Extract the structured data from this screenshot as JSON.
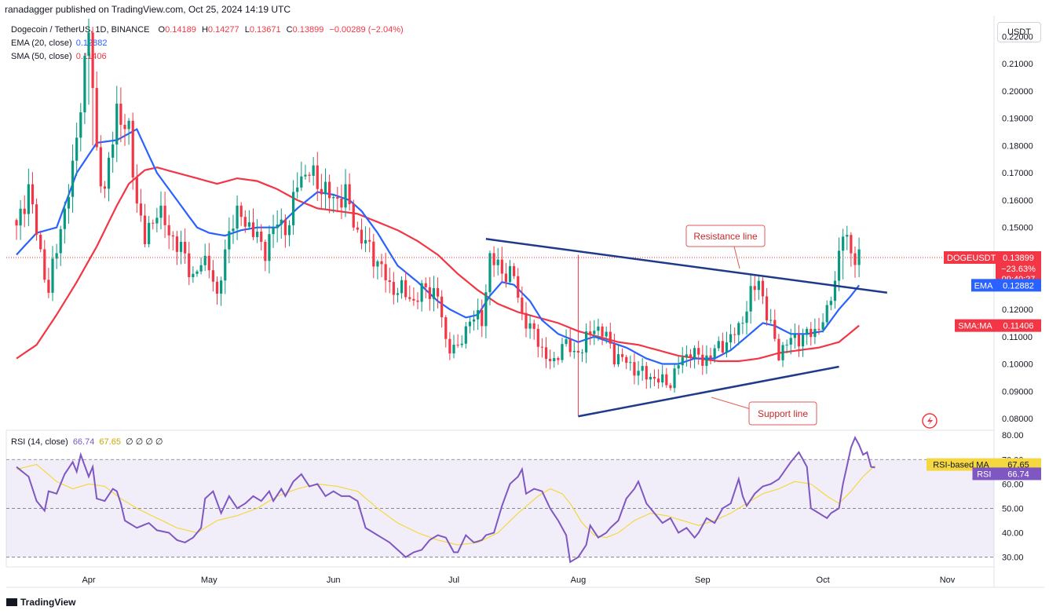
{
  "header": {
    "publisher": "ranadagger published on TradingView.com, Oct 25, 2024 14:19 UTC"
  },
  "legend": {
    "symbol": "Dogecoin / TetherUS, 1D, BINANCE",
    "open_label": "O",
    "open": "0.14189",
    "high_label": "H",
    "high": "0.14277",
    "low_label": "L",
    "low": "0.13671",
    "close_label": "C",
    "close": "0.13899",
    "change": "−0.00289 (−2.04%)",
    "ema_label": "EMA (20, close)",
    "ema_value": "0.12882",
    "sma_label": "SMA (50, close)",
    "sma_value": "0.11406"
  },
  "rsi_legend": {
    "label": "RSI (14, close)",
    "rsi": "66.74",
    "ma": "67.65",
    "extras": "∅ ∅ ∅ ∅"
  },
  "currency": "USDT",
  "footer": {
    "logo_text": "TradingView"
  },
  "annotations": {
    "resistance": "Resistance line",
    "support": "Support line"
  },
  "colors": {
    "up": "#089981",
    "down": "#f23645",
    "ema": "#2962ff",
    "sma": "#f23645",
    "trend": "#1e3a8a",
    "rsi": "#7e57c2",
    "rsi_ma": "#f5d742"
  },
  "chart_data": {
    "type": "candlestick",
    "price_axis": {
      "ticks": [
        "0.22000",
        "0.21000",
        "0.20000",
        "0.19000",
        "0.18000",
        "0.17000",
        "0.16000",
        "0.15000",
        "0.14000",
        "0.13000",
        "0.12000",
        "0.11000",
        "0.10000",
        "0.09000",
        "0.08000"
      ],
      "range": [
        0.0757,
        0.227
      ]
    },
    "rsi_axis": {
      "ticks": [
        "80.00",
        "70.00",
        "60.00",
        "50.00",
        "40.00",
        "30.00"
      ],
      "range": [
        26,
        82
      ],
      "levels": [
        70,
        50,
        30
      ]
    },
    "time_axis": {
      "labels": [
        "Apr",
        "May",
        "Jun",
        "Jul",
        "Aug",
        "Sep",
        "Oct",
        "Nov"
      ],
      "label_days": [
        18,
        48,
        79,
        109,
        140,
        171,
        201,
        232
      ]
    },
    "price_labels": [
      {
        "text": "DOGEUSDT",
        "value": "0.13899",
        "sub1": "−23.63%",
        "sub2": "09:40:27",
        "price": 0.13899,
        "color": "#f23645"
      },
      {
        "text": "EMA",
        "value": "0.12882",
        "price": 0.12882,
        "color": "#2962ff"
      },
      {
        "text": "SMA:MA",
        "value": "0.11406",
        "price": 0.11406,
        "color": "#f23645"
      }
    ],
    "rsi_labels": [
      {
        "text": "RSI-based MA",
        "value": "67.65",
        "level": 67.65,
        "bg": "#f5d742",
        "fg": "#131722"
      },
      {
        "text": "RSI",
        "value": "66.74",
        "level": 66.74,
        "bg": "#7e57c2",
        "fg": "#ffffff"
      }
    ],
    "close_anchors": [
      [
        0,
        0.149
      ],
      [
        3,
        0.165
      ],
      [
        6,
        0.14
      ],
      [
        8,
        0.127
      ],
      [
        11,
        0.15
      ],
      [
        14,
        0.17
      ],
      [
        16,
        0.197
      ],
      [
        18,
        0.222
      ],
      [
        20,
        0.178
      ],
      [
        22,
        0.162
      ],
      [
        25,
        0.194
      ],
      [
        27,
        0.186
      ],
      [
        28,
        0.184
      ],
      [
        30,
        0.16
      ],
      [
        32,
        0.145
      ],
      [
        35,
        0.157
      ],
      [
        38,
        0.148
      ],
      [
        41,
        0.142
      ],
      [
        44,
        0.132
      ],
      [
        46,
        0.136
      ],
      [
        48,
        0.138
      ],
      [
        50,
        0.123
      ],
      [
        53,
        0.15
      ],
      [
        56,
        0.155
      ],
      [
        59,
        0.148
      ],
      [
        62,
        0.142
      ],
      [
        65,
        0.152
      ],
      [
        68,
        0.15
      ],
      [
        70,
        0.168
      ],
      [
        73,
        0.17
      ],
      [
        76,
        0.165
      ],
      [
        79,
        0.16
      ],
      [
        82,
        0.162
      ],
      [
        85,
        0.148
      ],
      [
        88,
        0.142
      ],
      [
        91,
        0.135
      ],
      [
        93,
        0.128
      ],
      [
        96,
        0.127
      ],
      [
        99,
        0.123
      ],
      [
        102,
        0.128
      ],
      [
        105,
        0.125
      ],
      [
        107,
        0.108
      ],
      [
        110,
        0.105
      ],
      [
        113,
        0.117
      ],
      [
        116,
        0.116
      ],
      [
        118,
        0.139
      ],
      [
        121,
        0.134
      ],
      [
        124,
        0.132
      ],
      [
        126,
        0.118
      ],
      [
        128,
        0.113
      ],
      [
        130,
        0.109
      ],
      [
        132,
        0.102
      ],
      [
        134,
        0.1
      ],
      [
        136,
        0.108
      ],
      [
        139,
        0.104
      ],
      [
        141,
        0.106
      ],
      [
        144,
        0.114
      ],
      [
        147,
        0.11
      ],
      [
        149,
        0.103
      ],
      [
        152,
        0.101
      ],
      [
        154,
        0.098
      ],
      [
        157,
        0.096
      ],
      [
        160,
        0.094
      ],
      [
        163,
        0.093
      ],
      [
        165,
        0.1
      ],
      [
        168,
        0.105
      ],
      [
        171,
        0.101
      ],
      [
        174,
        0.105
      ],
      [
        177,
        0.108
      ],
      [
        180,
        0.113
      ],
      [
        183,
        0.125
      ],
      [
        185,
        0.131
      ],
      [
        187,
        0.118
      ],
      [
        190,
        0.104
      ],
      [
        193,
        0.109
      ],
      [
        196,
        0.11
      ],
      [
        199,
        0.112
      ],
      [
        202,
        0.118
      ],
      [
        204,
        0.132
      ],
      [
        206,
        0.148
      ],
      [
        208,
        0.141
      ],
      [
        210,
        0.139
      ]
    ],
    "wick_overrides": [
      [
        18,
        0.2265,
        0.195
      ],
      [
        19,
        0.2235,
        0.18
      ],
      [
        140,
        0.14,
        0.081
      ],
      [
        190,
        0.111,
        0.101
      ],
      [
        206,
        0.1495,
        0.131
      ]
    ],
    "ema_anchors": [
      [
        0,
        0.14
      ],
      [
        5,
        0.148
      ],
      [
        10,
        0.15
      ],
      [
        15,
        0.17
      ],
      [
        20,
        0.181
      ],
      [
        25,
        0.182
      ],
      [
        30,
        0.186
      ],
      [
        35,
        0.17
      ],
      [
        40,
        0.16
      ],
      [
        45,
        0.15
      ],
      [
        48,
        0.148
      ],
      [
        52,
        0.147
      ],
      [
        56,
        0.149
      ],
      [
        60,
        0.15
      ],
      [
        65,
        0.15
      ],
      [
        70,
        0.157
      ],
      [
        75,
        0.163
      ],
      [
        79,
        0.162
      ],
      [
        83,
        0.16
      ],
      [
        86,
        0.156
      ],
      [
        90,
        0.148
      ],
      [
        95,
        0.136
      ],
      [
        100,
        0.13
      ],
      [
        105,
        0.123
      ],
      [
        108,
        0.12
      ],
      [
        112,
        0.117
      ],
      [
        115,
        0.118
      ],
      [
        118,
        0.125
      ],
      [
        121,
        0.13
      ],
      [
        124,
        0.129
      ],
      [
        128,
        0.123
      ],
      [
        131,
        0.116
      ],
      [
        135,
        0.111
      ],
      [
        140,
        0.108
      ],
      [
        144,
        0.11
      ],
      [
        148,
        0.108
      ],
      [
        152,
        0.106
      ],
      [
        157,
        0.102
      ],
      [
        161,
        0.1
      ],
      [
        165,
        0.1
      ],
      [
        169,
        0.102
      ],
      [
        174,
        0.102
      ],
      [
        178,
        0.105
      ],
      [
        182,
        0.11
      ],
      [
        186,
        0.115
      ],
      [
        189,
        0.114
      ],
      [
        193,
        0.111
      ],
      [
        197,
        0.111
      ],
      [
        201,
        0.112
      ],
      [
        205,
        0.12
      ],
      [
        208,
        0.125
      ],
      [
        210,
        0.12882
      ]
    ],
    "sma_anchors": [
      [
        0,
        0.102
      ],
      [
        5,
        0.107
      ],
      [
        10,
        0.118
      ],
      [
        15,
        0.13
      ],
      [
        20,
        0.143
      ],
      [
        25,
        0.158
      ],
      [
        28,
        0.166
      ],
      [
        32,
        0.171
      ],
      [
        35,
        0.172
      ],
      [
        40,
        0.17
      ],
      [
        45,
        0.168
      ],
      [
        50,
        0.166
      ],
      [
        55,
        0.168
      ],
      [
        60,
        0.167
      ],
      [
        65,
        0.164
      ],
      [
        70,
        0.16
      ],
      [
        75,
        0.157
      ],
      [
        80,
        0.156
      ],
      [
        85,
        0.155
      ],
      [
        90,
        0.152
      ],
      [
        95,
        0.149
      ],
      [
        100,
        0.145
      ],
      [
        105,
        0.14
      ],
      [
        110,
        0.133
      ],
      [
        115,
        0.127
      ],
      [
        120,
        0.122
      ],
      [
        125,
        0.119
      ],
      [
        130,
        0.117
      ],
      [
        135,
        0.115
      ],
      [
        140,
        0.112
      ],
      [
        145,
        0.11
      ],
      [
        150,
        0.108
      ],
      [
        155,
        0.107
      ],
      [
        160,
        0.105
      ],
      [
        165,
        0.103
      ],
      [
        170,
        0.102
      ],
      [
        175,
        0.101
      ],
      [
        180,
        0.101
      ],
      [
        185,
        0.102
      ],
      [
        190,
        0.104
      ],
      [
        195,
        0.105
      ],
      [
        200,
        0.106
      ],
      [
        205,
        0.108
      ],
      [
        210,
        0.11406
      ]
    ],
    "rsi_anchors": [
      [
        0,
        67
      ],
      [
        3,
        63
      ],
      [
        5,
        53
      ],
      [
        7,
        49
      ],
      [
        8,
        57
      ],
      [
        10,
        56
      ],
      [
        12,
        64
      ],
      [
        14,
        69
      ],
      [
        15,
        65
      ],
      [
        16,
        72
      ],
      [
        18,
        63
      ],
      [
        19,
        67
      ],
      [
        20,
        54
      ],
      [
        22,
        53
      ],
      [
        24,
        58
      ],
      [
        25,
        57
      ],
      [
        26,
        52
      ],
      [
        27,
        45
      ],
      [
        30,
        42
      ],
      [
        33,
        44
      ],
      [
        35,
        41
      ],
      [
        38,
        40
      ],
      [
        40,
        37
      ],
      [
        42,
        36
      ],
      [
        44,
        38
      ],
      [
        46,
        42
      ],
      [
        47,
        54
      ],
      [
        49,
        57
      ],
      [
        51,
        48
      ],
      [
        53,
        55
      ],
      [
        55,
        50
      ],
      [
        57,
        52
      ],
      [
        59,
        55
      ],
      [
        61,
        53
      ],
      [
        63,
        57
      ],
      [
        64,
        53
      ],
      [
        66,
        58
      ],
      [
        67,
        55
      ],
      [
        69,
        61
      ],
      [
        71,
        64
      ],
      [
        73,
        59
      ],
      [
        75,
        60
      ],
      [
        77,
        55
      ],
      [
        79,
        57
      ],
      [
        81,
        55
      ],
      [
        83,
        55
      ],
      [
        85,
        53
      ],
      [
        87,
        42
      ],
      [
        89,
        40
      ],
      [
        91,
        38
      ],
      [
        93,
        36
      ],
      [
        95,
        33
      ],
      [
        97,
        30
      ],
      [
        99,
        32
      ],
      [
        101,
        33
      ],
      [
        103,
        37
      ],
      [
        105,
        39
      ],
      [
        107,
        38
      ],
      [
        109,
        32
      ],
      [
        110,
        32
      ],
      [
        112,
        39
      ],
      [
        114,
        36
      ],
      [
        116,
        37
      ],
      [
        117,
        39
      ],
      [
        119,
        40
      ],
      [
        121,
        51
      ],
      [
        123,
        60
      ],
      [
        125,
        63
      ],
      [
        126,
        66
      ],
      [
        127,
        56
      ],
      [
        129,
        58
      ],
      [
        131,
        57
      ],
      [
        133,
        50
      ],
      [
        135,
        45
      ],
      [
        137,
        39
      ],
      [
        138,
        28
      ],
      [
        140,
        30
      ],
      [
        142,
        35
      ],
      [
        143,
        43
      ],
      [
        145,
        38
      ],
      [
        147,
        40
      ],
      [
        148,
        42
      ],
      [
        150,
        45
      ],
      [
        152,
        54
      ],
      [
        154,
        58
      ],
      [
        155,
        61
      ],
      [
        157,
        52
      ],
      [
        159,
        48
      ],
      [
        161,
        44
      ],
      [
        163,
        46
      ],
      [
        165,
        40
      ],
      [
        167,
        42
      ],
      [
        169,
        38
      ],
      [
        170,
        40
      ],
      [
        172,
        46
      ],
      [
        174,
        44
      ],
      [
        176,
        50
      ],
      [
        178,
        52
      ],
      [
        180,
        62
      ],
      [
        181,
        55
      ],
      [
        182,
        51
      ],
      [
        184,
        56
      ],
      [
        186,
        59
      ],
      [
        188,
        60
      ],
      [
        190,
        62
      ],
      [
        193,
        69
      ],
      [
        195,
        73
      ],
      [
        197,
        67
      ],
      [
        198,
        50
      ],
      [
        200,
        48
      ],
      [
        202,
        46
      ],
      [
        203,
        48
      ],
      [
        205,
        50
      ],
      [
        206,
        60
      ],
      [
        208,
        75
      ],
      [
        209,
        79
      ],
      [
        210,
        76
      ],
      [
        211,
        72
      ],
      [
        212,
        73
      ],
      [
        213,
        67
      ],
      [
        214,
        66.74
      ]
    ],
    "rsi_ma_anchors": [
      [
        0,
        66
      ],
      [
        5,
        68
      ],
      [
        10,
        61
      ],
      [
        14,
        58
      ],
      [
        18,
        60
      ],
      [
        22,
        59
      ],
      [
        26,
        54
      ],
      [
        30,
        50
      ],
      [
        35,
        46
      ],
      [
        40,
        42
      ],
      [
        45,
        40
      ],
      [
        50,
        45
      ],
      [
        55,
        47
      ],
      [
        60,
        50
      ],
      [
        65,
        55
      ],
      [
        70,
        58
      ],
      [
        75,
        60
      ],
      [
        80,
        59
      ],
      [
        85,
        57
      ],
      [
        90,
        50
      ],
      [
        95,
        44
      ],
      [
        100,
        40
      ],
      [
        105,
        37
      ],
      [
        110,
        35
      ],
      [
        115,
        36
      ],
      [
        120,
        40
      ],
      [
        125,
        48
      ],
      [
        130,
        55
      ],
      [
        133,
        58
      ],
      [
        136,
        56
      ],
      [
        138,
        52
      ],
      [
        141,
        44
      ],
      [
        144,
        39
      ],
      [
        147,
        38
      ],
      [
        150,
        40
      ],
      [
        154,
        45
      ],
      [
        158,
        48
      ],
      [
        162,
        47
      ],
      [
        166,
        45
      ],
      [
        170,
        43
      ],
      [
        174,
        45
      ],
      [
        178,
        48
      ],
      [
        182,
        52
      ],
      [
        186,
        56
      ],
      [
        190,
        58
      ],
      [
        194,
        61
      ],
      [
        198,
        60
      ],
      [
        202,
        55
      ],
      [
        205,
        52
      ],
      [
        208,
        57
      ],
      [
        211,
        63
      ],
      [
        214,
        67.65
      ]
    ],
    "trendlines": {
      "resistance": {
        "from": [
          117,
          0.1458
        ],
        "to": [
          217,
          0.1261
        ]
      },
      "support": {
        "from": [
          140,
          0.0808
        ],
        "to": [
          205,
          0.099
        ]
      }
    }
  }
}
